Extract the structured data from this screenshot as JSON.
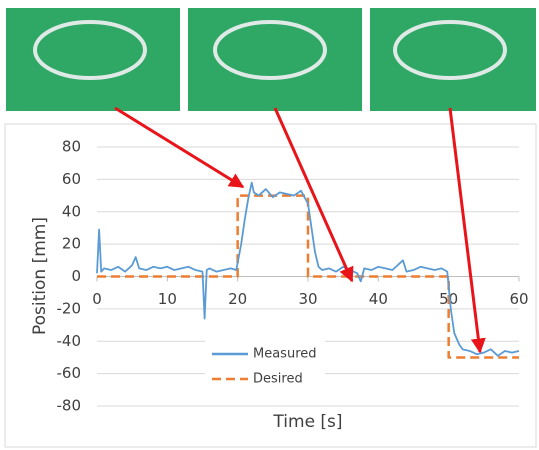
{
  "chart_data": {
    "type": "line",
    "xlabel": "Time [s]",
    "ylabel": "Position [mm]",
    "xlim": [
      0,
      60
    ],
    "xticks": [
      0,
      10,
      20,
      30,
      40,
      50,
      60
    ],
    "ylim": [
      -80,
      80
    ],
    "yticks": [
      -80,
      -60,
      -40,
      -20,
      0,
      20,
      40,
      60,
      80
    ],
    "grid": true,
    "series": [
      {
        "name": "Measured",
        "color": "#5b9bd5",
        "dash": false,
        "x": [
          0,
          0.3,
          0.6,
          1,
          2,
          3,
          4,
          5,
          5.5,
          6,
          7,
          8,
          9,
          10,
          11,
          12,
          13,
          14,
          15,
          15.3,
          15.6,
          16,
          17,
          18,
          19,
          19.8,
          20.5,
          21,
          21.5,
          22,
          22.3,
          23,
          24,
          25,
          26,
          27,
          28,
          29,
          29.5,
          30,
          30.5,
          31,
          31.5,
          32,
          33,
          34,
          35,
          36,
          37,
          37.5,
          38,
          39,
          40,
          41,
          42,
          43,
          43.5,
          44,
          45,
          46,
          47,
          48,
          49,
          49.8,
          50.3,
          50.8,
          51.5,
          52,
          53,
          54,
          55,
          56,
          57,
          58,
          59,
          60
        ],
        "values": [
          2,
          29,
          3,
          5,
          4,
          6,
          3,
          7,
          12,
          5,
          4,
          6,
          5,
          6,
          4,
          5,
          6,
          4,
          3,
          -26,
          4,
          5,
          3,
          4,
          5,
          4,
          20,
          35,
          48,
          58,
          52,
          50,
          54,
          49,
          52,
          51,
          50,
          53,
          49,
          45,
          30,
          15,
          6,
          4,
          5,
          3,
          6,
          4,
          2,
          -3,
          5,
          4,
          6,
          5,
          4,
          8,
          10,
          3,
          4,
          6,
          5,
          4,
          5,
          3,
          -20,
          -35,
          -42,
          -45,
          -46,
          -48,
          -47,
          -45,
          -49,
          -46,
          -47,
          -46
        ]
      },
      {
        "name": "Desired",
        "color": "#ed7d31",
        "dash": true,
        "x": [
          0,
          20,
          20,
          30,
          30,
          50,
          50,
          60
        ],
        "values": [
          0,
          0,
          50,
          50,
          0,
          0,
          -50,
          -50
        ]
      }
    ]
  }
}
